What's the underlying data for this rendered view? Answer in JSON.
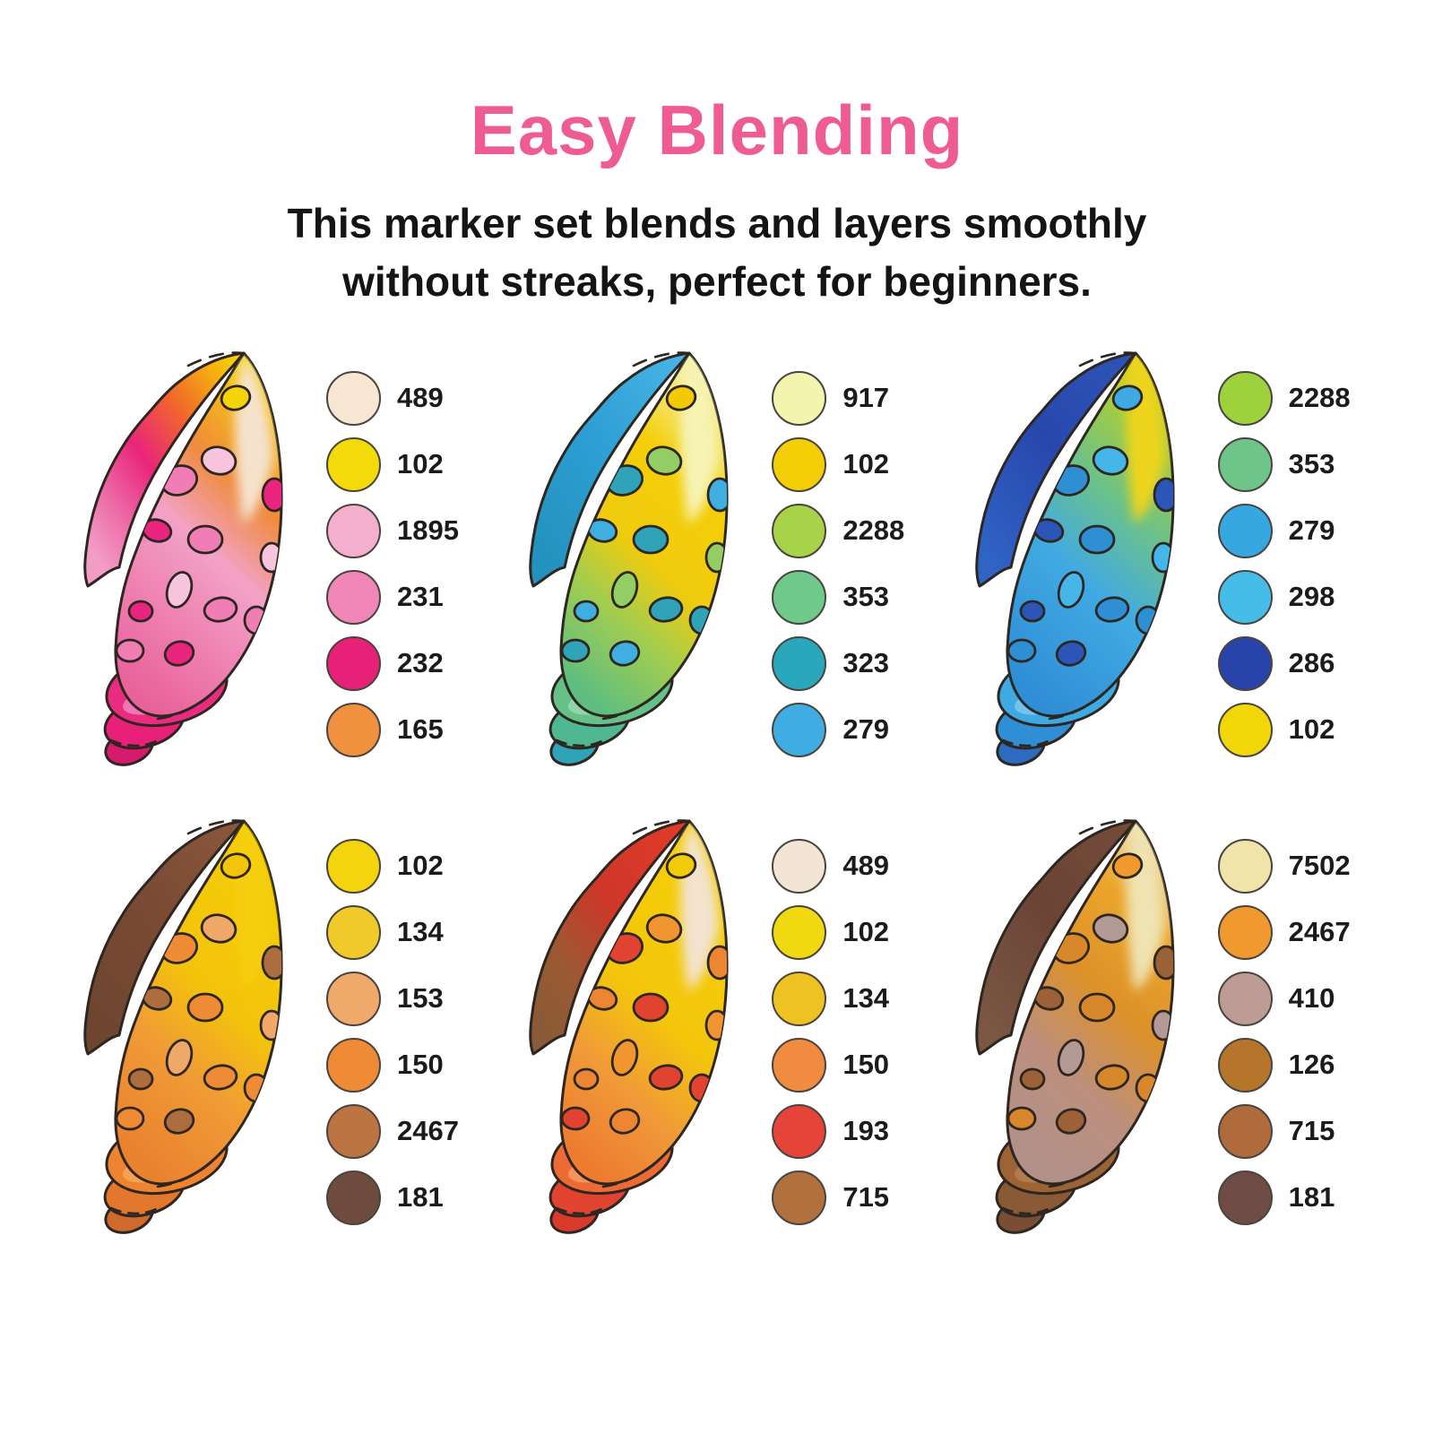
{
  "header": {
    "title": "Easy Blending",
    "title_color": "#EE5C93",
    "subtitle_line1": "This marker set blends and layers smoothly",
    "subtitle_line2": "without streaks, perfect for beginners."
  },
  "canvas": {
    "background": "#FFFFFF",
    "outline_color": "#2E2620"
  },
  "panels": [
    {
      "name": "pink-orange-shell",
      "swatches": [
        {
          "code": "489",
          "color": "#F7E6D1"
        },
        {
          "code": "102",
          "color": "#F2DB09"
        },
        {
          "code": "1895",
          "color": "#F4AFCE"
        },
        {
          "code": "231",
          "color": "#F187B8"
        },
        {
          "code": "232",
          "color": "#E82178"
        },
        {
          "code": "165",
          "color": "#EF913E"
        }
      ],
      "shell": {
        "band": [
          [
            0,
            "#F8D303"
          ],
          [
            0.33,
            "#F1662C"
          ],
          [
            0.58,
            "#E9257A"
          ],
          [
            0.82,
            "#ED6FA9"
          ],
          [
            1,
            "#F29CC6"
          ]
        ],
        "body": [
          [
            0,
            "#F7D206"
          ],
          [
            0.3,
            "#F08B3C"
          ],
          [
            0.52,
            "#F2A2C8"
          ],
          [
            0.72,
            "#EF86B6"
          ],
          [
            1,
            "#E9639B"
          ]
        ],
        "tip": "#F5E2CD",
        "tip_spot": "#F5D30A",
        "spots": [
          "#F6C5DD",
          "#F07EB4",
          "#E92580"
        ],
        "whorls": [
          "#EA2C80",
          "#E9207A",
          "#D81A6E"
        ],
        "whorl_highlight": "#F284BC"
      }
    },
    {
      "name": "blue-green-yellow-shell",
      "swatches": [
        {
          "code": "917",
          "color": "#F3F5AE"
        },
        {
          "code": "102",
          "color": "#F3CE06"
        },
        {
          "code": "2288",
          "color": "#A6D348"
        },
        {
          "code": "353",
          "color": "#6EC98A"
        },
        {
          "code": "323",
          "color": "#28A7BD"
        },
        {
          "code": "279",
          "color": "#3FADE1"
        }
      ],
      "shell": {
        "band": [
          [
            0,
            "#47B4E4"
          ],
          [
            0.5,
            "#2E9FD4"
          ],
          [
            1,
            "#2392BE"
          ]
        ],
        "body": [
          [
            0,
            "#F6F3B3"
          ],
          [
            0.28,
            "#F4CE08"
          ],
          [
            0.55,
            "#F0CB0E"
          ],
          [
            0.75,
            "#A2CD50"
          ],
          [
            1,
            "#5FBE7F"
          ]
        ],
        "tip": "#F6F3B3",
        "tip_spot": "#F2CB06",
        "spots": [
          "#93CE65",
          "#2FA3B8",
          "#3FAEE0"
        ],
        "whorls": [
          "#66C188",
          "#4FB892",
          "#2FA3B8"
        ],
        "whorl_highlight": "#9AD8B0"
      }
    },
    {
      "name": "blue-shell",
      "swatches": [
        {
          "code": "2288",
          "color": "#9ED23C"
        },
        {
          "code": "353",
          "color": "#6EC489"
        },
        {
          "code": "279",
          "color": "#36A8E1"
        },
        {
          "code": "298",
          "color": "#46BDE9"
        },
        {
          "code": "286",
          "color": "#2843A9"
        },
        {
          "code": "102",
          "color": "#F2D708"
        }
      ],
      "shell": {
        "band": [
          [
            0,
            "#2D54B8"
          ],
          [
            0.5,
            "#2847AC"
          ],
          [
            1,
            "#2F63C4"
          ]
        ],
        "body": [
          [
            0,
            "#EDD41A"
          ],
          [
            0.16,
            "#A0CB46"
          ],
          [
            0.36,
            "#6DC288"
          ],
          [
            0.62,
            "#41AAE2"
          ],
          [
            1,
            "#2F8ED6"
          ]
        ],
        "tip": "#EDD41A",
        "tip_spot": "#3FA9E2",
        "spots": [
          "#46B5E8",
          "#2E8FD2",
          "#2C55B8"
        ],
        "whorls": [
          "#3FA9E2",
          "#2F8ED6",
          "#2D6AC0"
        ],
        "whorl_highlight": "#7CC8F0"
      }
    },
    {
      "name": "yellow-orange-brown-shell",
      "swatches": [
        {
          "code": "102",
          "color": "#F3D40D"
        },
        {
          "code": "134",
          "color": "#F0CA2A"
        },
        {
          "code": "153",
          "color": "#F0A96A"
        },
        {
          "code": "150",
          "color": "#EF8B34"
        },
        {
          "code": "2467",
          "color": "#BD7443"
        },
        {
          "code": "181",
          "color": "#6F4B3D"
        }
      ],
      "shell": {
        "band": [
          [
            0,
            "#8A573C"
          ],
          [
            0.5,
            "#7A4A33"
          ],
          [
            1,
            "#6E4630"
          ]
        ],
        "body": [
          [
            0,
            "#F5CE07"
          ],
          [
            0.45,
            "#F3C30B"
          ],
          [
            0.7,
            "#F09A36"
          ],
          [
            1,
            "#E9822F"
          ]
        ],
        "tip": "#F5CE07",
        "tip_spot": "#F2C40A",
        "spots": [
          "#F0A869",
          "#EF8B34",
          "#AD6E3F"
        ],
        "whorls": [
          "#EE8430",
          "#E2782E",
          "#D06A2C"
        ],
        "whorl_highlight": "#F5A45C"
      }
    },
    {
      "name": "red-orange-yellow-shell",
      "swatches": [
        {
          "code": "489",
          "color": "#F3E5D4"
        },
        {
          "code": "102",
          "color": "#F0D911"
        },
        {
          "code": "134",
          "color": "#EEC321"
        },
        {
          "code": "150",
          "color": "#F08B40"
        },
        {
          "code": "193",
          "color": "#E64438"
        },
        {
          "code": "715",
          "color": "#B1713F"
        }
      ],
      "shell": {
        "band": [
          [
            0,
            "#E23A2A"
          ],
          [
            0.45,
            "#CE3728"
          ],
          [
            0.78,
            "#9A5A33"
          ],
          [
            1,
            "#8A5B36"
          ]
        ],
        "body": [
          [
            0,
            "#F5CF07"
          ],
          [
            0.5,
            "#F3C60B"
          ],
          [
            0.75,
            "#F09A38"
          ],
          [
            1,
            "#ED7C31"
          ]
        ],
        "tip": "#F3E3CF",
        "tip_spot": "#F2CB0A",
        "spots": [
          "#F0952F",
          "#E04330",
          "#ED8633"
        ],
        "whorls": [
          "#ED6A35",
          "#E04330",
          "#D83A2C"
        ],
        "whorl_highlight": "#F49B60"
      }
    },
    {
      "name": "brown-tan-shell",
      "swatches": [
        {
          "code": "7502",
          "color": "#F0E4A8"
        },
        {
          "code": "2467",
          "color": "#F0992F"
        },
        {
          "code": "410",
          "color": "#BC9C95"
        },
        {
          "code": "126",
          "color": "#B5762C"
        },
        {
          "code": "715",
          "color": "#B06B3C"
        },
        {
          "code": "181",
          "color": "#6F4B45"
        }
      ],
      "shell": {
        "band": [
          [
            0,
            "#744B38"
          ],
          [
            0.5,
            "#6B4436"
          ],
          [
            1,
            "#7A5643"
          ]
        ],
        "body": [
          [
            0,
            "#EFE0B0"
          ],
          [
            0.18,
            "#ECA62B"
          ],
          [
            0.45,
            "#DD9129"
          ],
          [
            0.72,
            "#BC8F7E"
          ],
          [
            1,
            "#B29189"
          ]
        ],
        "tip": "#EFE3B2",
        "tip_spot": "#F09A2E",
        "spots": [
          "#B49A94",
          "#D8882B",
          "#9C6136"
        ],
        "whorls": [
          "#9C6434",
          "#8A5A36",
          "#7A4E34"
        ],
        "whorl_highlight": "#B58050"
      }
    }
  ]
}
